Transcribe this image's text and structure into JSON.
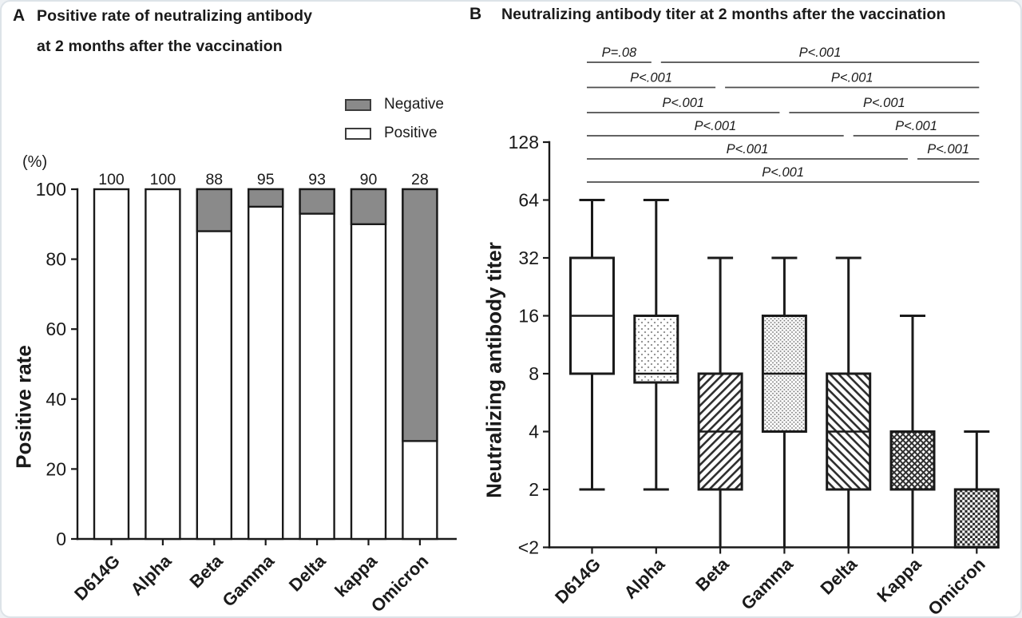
{
  "figure": {
    "panelA": {
      "panel_label": "A",
      "title_line1": "Positive rate of neutralizing antibody",
      "title_line2": "at 2 months after the vaccination",
      "y_axis_unit": "(%)",
      "y_axis_label": "Positive rate",
      "legend": [
        {
          "label": "Negative",
          "swatch": "gray"
        },
        {
          "label": "Positive",
          "swatch": "white"
        }
      ]
    },
    "panelB": {
      "panel_label": "B",
      "title": "Neutralizing antibody titer at 2 months after the vaccination",
      "y_axis_label": "Neutralizing antibody titer"
    }
  },
  "colors": {
    "ink": "#1a1a1a",
    "negative_fill": "#8a8a8a",
    "pattern_dark": "#2e2e2e",
    "comparison_line": "#4d4d4d"
  },
  "chart_data": [
    {
      "panel": "A",
      "type": "bar",
      "stacked": true,
      "title": "Positive rate of neutralizing antibody at 2 months after the vaccination",
      "ylabel": "Positive rate",
      "y_unit": "(%)",
      "categories": [
        "D614G",
        "Alpha",
        "Beta",
        "Gamma",
        "Delta",
        "kappa",
        "Omicron"
      ],
      "series": [
        {
          "name": "Positive",
          "values": [
            100,
            100,
            88,
            95,
            93,
            90,
            28
          ],
          "fill": "#ffffff"
        },
        {
          "name": "Negative",
          "values": [
            0,
            0,
            12,
            5,
            7,
            10,
            72
          ],
          "fill": "#8a8a8a"
        }
      ],
      "bar_value_labels": [
        "100",
        "100",
        "88",
        "95",
        "93",
        "90",
        "28"
      ],
      "yticks": [
        0,
        20,
        40,
        60,
        80,
        100
      ],
      "ylim": [
        0,
        100
      ],
      "grid": false,
      "legend_position": "top-right"
    },
    {
      "panel": "B",
      "type": "box",
      "title": "Neutralizing antibody titer at 2 months after the vaccination",
      "ylabel": "Neutralizing antibody titer",
      "scale": "log2",
      "ytick_labels": [
        "128",
        "64",
        "32",
        "16",
        "8",
        "4",
        "2",
        "<2"
      ],
      "categories": [
        "D614G",
        "Alpha",
        "Beta",
        "Gamma",
        "Delta",
        "Kappa",
        "Omicron"
      ],
      "boxes": [
        {
          "category": "D614G",
          "whisker_low": 2,
          "q1": 8,
          "median": 16,
          "q3": 32,
          "whisker_high": 64,
          "pattern": "solid-white"
        },
        {
          "category": "Alpha",
          "whisker_low": 2,
          "q1": 8,
          "median": 8,
          "q3": 16,
          "whisker_high": 64,
          "pattern": "dots-sparse"
        },
        {
          "category": "Beta",
          "whisker_low": "<2",
          "q1": 2,
          "median": 4,
          "q3": 8,
          "whisker_high": 32,
          "pattern": "stripes-up"
        },
        {
          "category": "Gamma",
          "whisker_low": "<2",
          "q1": 4,
          "median": 8,
          "q3": 16,
          "whisker_high": 32,
          "pattern": "dots-dense"
        },
        {
          "category": "Delta",
          "whisker_low": "<2",
          "q1": 2,
          "median": 4,
          "q3": 8,
          "whisker_high": 32,
          "pattern": "stripes-down"
        },
        {
          "category": "Kappa",
          "whisker_low": "<2",
          "q1": 2,
          "median": 4,
          "q3": 4,
          "whisker_high": 16,
          "pattern": "crosshatch"
        },
        {
          "category": "Omicron",
          "whisker_low": "<2",
          "q1": "<2",
          "median": 2,
          "q3": 2,
          "whisker_high": 4,
          "pattern": "checker"
        }
      ],
      "comparisons": [
        {
          "label": "P=.08",
          "from": "D614G",
          "to": "Alpha",
          "row": 1
        },
        {
          "label": "P<.001",
          "from": "Alpha",
          "to": "Omicron",
          "row": 1
        },
        {
          "label": "P<.001",
          "from": "D614G",
          "to": "Beta",
          "row": 2
        },
        {
          "label": "P<.001",
          "from": "Beta",
          "to": "Omicron",
          "row": 2
        },
        {
          "label": "P<.001",
          "from": "D614G",
          "to": "Gamma",
          "row": 3
        },
        {
          "label": "P<.001",
          "from": "Gamma",
          "to": "Omicron",
          "row": 3
        },
        {
          "label": "P<.001",
          "from": "D614G",
          "to": "Delta",
          "row": 4
        },
        {
          "label": "P<.001",
          "from": "Delta",
          "to": "Omicron",
          "row": 4
        },
        {
          "label": "P<.001",
          "from": "D614G",
          "to": "Kappa",
          "row": 5
        },
        {
          "label": "P<.001",
          "from": "Kappa",
          "to": "Omicron",
          "row": 5
        },
        {
          "label": "P<.001",
          "from": "D614G",
          "to": "Omicron",
          "row": 6
        }
      ]
    }
  ]
}
